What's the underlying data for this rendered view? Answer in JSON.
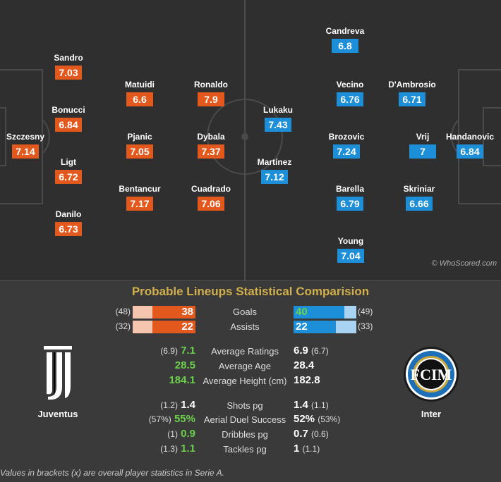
{
  "home_team": {
    "name": "Juventus",
    "players": [
      {
        "name": "Szczesny",
        "rating": "7.14"
      },
      {
        "name": "Sandro",
        "rating": "7.03"
      },
      {
        "name": "Bonucci",
        "rating": "6.84"
      },
      {
        "name": "Ligt",
        "rating": "6.72"
      },
      {
        "name": "Danilo",
        "rating": "6.73"
      },
      {
        "name": "Matuidi",
        "rating": "6.6"
      },
      {
        "name": "Pjanic",
        "rating": "7.05"
      },
      {
        "name": "Bentancur",
        "rating": "7.17"
      },
      {
        "name": "Ronaldo",
        "rating": "7.9"
      },
      {
        "name": "Dybala",
        "rating": "7.37"
      },
      {
        "name": "Cuadrado",
        "rating": "7.06"
      }
    ]
  },
  "away_team": {
    "name": "Inter",
    "players": [
      {
        "name": "Candreva",
        "rating": "6.8"
      },
      {
        "name": "Lukaku",
        "rating": "7.43"
      },
      {
        "name": "Martínez",
        "rating": "7.12"
      },
      {
        "name": "Vecino",
        "rating": "6.76"
      },
      {
        "name": "Brozovic",
        "rating": "7.24"
      },
      {
        "name": "Barella",
        "rating": "6.79"
      },
      {
        "name": "Young",
        "rating": "7.04"
      },
      {
        "name": "D'Ambrosio",
        "rating": "6.71"
      },
      {
        "name": "Vrij",
        "rating": "7"
      },
      {
        "name": "Skriniar",
        "rating": "6.66"
      },
      {
        "name": "Handanovic",
        "rating": "6.84"
      }
    ]
  },
  "credit": "© WhoScored.com",
  "comparison": {
    "title": "Probable Lineups Statistical Comparision",
    "bars": [
      {
        "label": "Goals",
        "home": "38",
        "home_overall": "(48)",
        "away": "40",
        "away_overall": "(49)",
        "home_fill": 0.68,
        "away_fill": 0.81,
        "winner": "away"
      },
      {
        "label": "Assists",
        "home": "22",
        "home_overall": "(32)",
        "away": "22",
        "away_overall": "(33)",
        "home_fill": 0.69,
        "away_fill": 0.67,
        "winner": "none"
      }
    ],
    "rows": [
      {
        "label": "Average Ratings",
        "home": "7.1",
        "home_overall": "(6.9)",
        "away": "6.9",
        "away_overall": "(6.7)",
        "winner": "home"
      },
      {
        "label": "Average Age",
        "home": "28.5",
        "home_overall": "",
        "away": "28.4",
        "away_overall": "",
        "winner": "home"
      },
      {
        "label": "Average Height (cm)",
        "home": "184.1",
        "home_overall": "",
        "away": "182.8",
        "away_overall": "",
        "winner": "home"
      },
      {
        "label": "Shots pg",
        "home": "1.4",
        "home_overall": "(1.2)",
        "away": "1.4",
        "away_overall": "(1.1)",
        "winner": "none"
      },
      {
        "label": "Aerial Duel Success",
        "home": "55%",
        "home_overall": "(57%)",
        "away": "52%",
        "away_overall": "(53%)",
        "winner": "home"
      },
      {
        "label": "Dribbles pg",
        "home": "0.9",
        "home_overall": "(1)",
        "away": "0.7",
        "away_overall": "(0.6)",
        "winner": "home"
      },
      {
        "label": "Tackles pg",
        "home": "1.1",
        "home_overall": "(1.3)",
        "away": "1",
        "away_overall": "(1.1)",
        "winner": "home"
      }
    ],
    "footnote": "Values in brackets (x) are overall player statistics in Serie A."
  },
  "colors": {
    "home": "#e3581c",
    "away": "#1d8fd8",
    "win": "#6bd04a",
    "title": "#d1b04c"
  }
}
